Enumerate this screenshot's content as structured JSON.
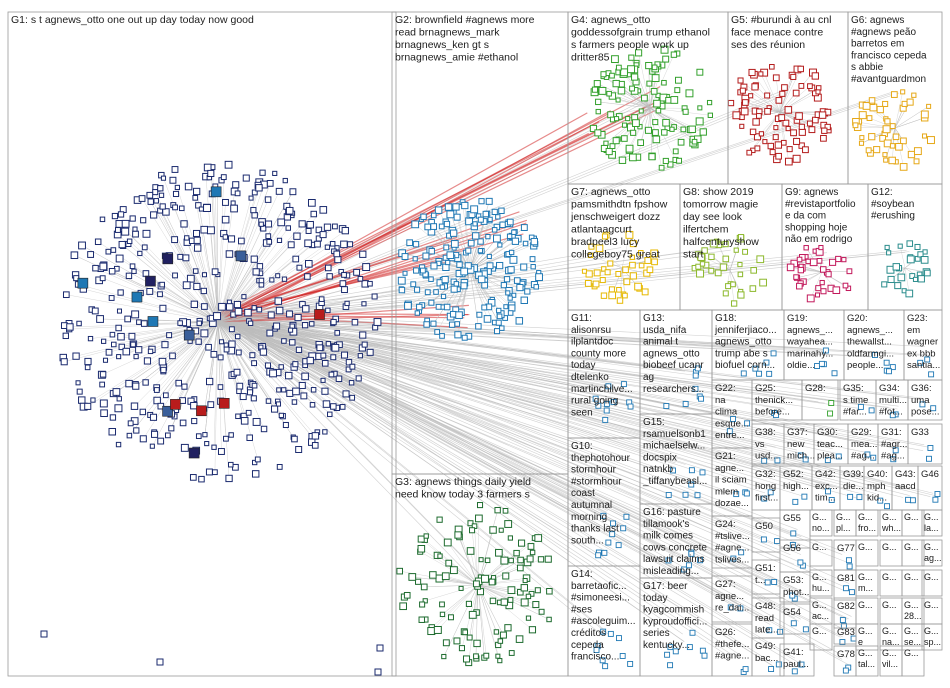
{
  "groups": [
    {
      "id": "G1",
      "lines": [
        "G1: s t agnews_otto one out up day today now good"
      ],
      "color": "#1a2a6e"
    },
    {
      "id": "G2",
      "lines": [
        "G2: brownfield #agnews more",
        "read brnagnews_mark",
        "brnagnews_ken gt s",
        "brnagnews_amie #ethanol"
      ],
      "color": "#1f78b4"
    },
    {
      "id": "G3",
      "lines": [
        "G3: agnews things daily yield",
        "need know today 3 farmers s"
      ],
      "color": "#1d6b2e"
    },
    {
      "id": "G4",
      "lines": [
        "G4: agnews_otto",
        "goddessofgrain trump ethanol",
        "s farmers people work up",
        "dritter85"
      ],
      "color": "#33a02c"
    },
    {
      "id": "G5",
      "lines": [
        "G5: #burundi à au cnl",
        "face menace contre",
        "ses des réunion"
      ],
      "color": "#b31b1b"
    },
    {
      "id": "G6",
      "lines": [
        "G6: agnews",
        "#agnews peão",
        "barretos em",
        "francisco cepeda",
        "s abbie",
        "#avantguardmon"
      ],
      "color": "#e6a817"
    },
    {
      "id": "G7",
      "lines": [
        "G7: agnews_otto",
        "pamsmithdtn fpshow",
        "jenschweigert dozz",
        "atlantaagcurt",
        "bradpeel3 lucy",
        "collegeboy75 great"
      ],
      "color": "#e6b800"
    },
    {
      "id": "G8",
      "lines": [
        "G8: show 2019",
        "tomorrow magie",
        "day see look",
        "ilfertchem",
        "halfcenturyshow",
        "start"
      ],
      "color": "#8cb82b"
    },
    {
      "id": "G9",
      "lines": [
        "G9: agnews",
        "#revistaportfolio",
        "e da com",
        "shopping hoje",
        "não em rodrigo"
      ],
      "color": "#c2185b"
    },
    {
      "id": "G10",
      "lines": [
        "G10:",
        "thephotohour",
        "stormhour",
        "#stormhour",
        "coast",
        "autumnal",
        "morning",
        "thanks last",
        "south..."
      ],
      "color": "#1f78b4"
    },
    {
      "id": "G11",
      "lines": [
        "G11:",
        "alisonrsu",
        "ilplantdoc",
        "county more",
        "today",
        "dtelenko",
        "martinchilve...",
        "rural going",
        "seen"
      ],
      "color": "#1f78b4"
    },
    {
      "id": "G12",
      "lines": [
        "G12:",
        "#soybean",
        "#erushing"
      ],
      "color": "#2a8c8c"
    },
    {
      "id": "G13",
      "lines": [
        "G13:",
        "usda_nifa",
        "animal t",
        "agnews_otto",
        "biobeef ucanr",
        "ag",
        "researchers..."
      ],
      "color": "#1f78b4"
    },
    {
      "id": "G14",
      "lines": [
        "G14:",
        "barretaofic...",
        "#simoneesi...",
        "#ses",
        "#ascoleguim...",
        "créditos",
        "cepeda",
        "francisco..."
      ],
      "color": "#1f78b4"
    },
    {
      "id": "G15",
      "lines": [
        "G15:",
        "rsamuelsonb1",
        "michaelselw...",
        "docspix",
        "natnkb",
        "_tiffanybeasl..."
      ],
      "color": "#1f78b4"
    },
    {
      "id": "G16",
      "lines": [
        "G16: pasture",
        "tillamook's",
        "milk comes",
        "cows concrete",
        "lawsuit claims",
        "misleading..."
      ],
      "color": "#1f78b4"
    },
    {
      "id": "G17",
      "lines": [
        "G17: beer",
        "today",
        "kyagcommish",
        "kyproudoffici...",
        "series",
        "kentucky..."
      ],
      "color": "#1f78b4"
    },
    {
      "id": "G18",
      "lines": [
        "G18:",
        "jenniferjiaco...",
        "agnews_otto",
        "trump abe s",
        "biofuel corn..."
      ],
      "color": "#1f78b4"
    },
    {
      "id": "G19",
      "lines": [
        "G19:",
        "agnews_...",
        "wayahea...",
        "marinahy...",
        "oldie..."
      ],
      "color": "#1f78b4"
    },
    {
      "id": "G20",
      "lines": [
        "G20:",
        "agnews_...",
        "thewallst...",
        "oldfarmgi...",
        "people..."
      ],
      "color": "#1f78b4"
    },
    {
      "id": "G21",
      "lines": [
        "G21:",
        "agne...",
        "il sciam",
        "mlem",
        "dozae..."
      ],
      "color": "#1f78b4"
    },
    {
      "id": "G22",
      "lines": [
        "G22:",
        "na",
        "clima",
        "esque...",
        "entre..."
      ],
      "color": "#1f78b4"
    },
    {
      "id": "G23",
      "lines": [
        "G23:",
        "em",
        "wagner",
        "ex bbb",
        "santia..."
      ],
      "color": "#1f78b4"
    },
    {
      "id": "G24",
      "lines": [
        "G24:",
        "#tslive...",
        "#agne...",
        "tslives..."
      ],
      "color": "#1f78b4"
    },
    {
      "id": "G25",
      "lines": [
        "G25:",
        "thenick...",
        "before..."
      ],
      "color": "#1f78b4"
    },
    {
      "id": "G26",
      "lines": [
        "G26:",
        "#thefe...",
        "#agne..."
      ],
      "color": "#1f78b4"
    },
    {
      "id": "G27",
      "lines": [
        "G27:",
        "agne...",
        "re_dai..."
      ],
      "color": "#1f78b4"
    },
    {
      "id": "G28",
      "lines": [
        "G28:"
      ],
      "color": "#33a02c"
    },
    {
      "id": "G29",
      "lines": [
        "G29:",
        "mea...",
        "#ag..."
      ],
      "color": "#1f78b4"
    },
    {
      "id": "G30",
      "lines": [
        "G30:",
        "teac...",
        "plea..."
      ],
      "color": "#1f78b4"
    },
    {
      "id": "G31",
      "lines": [
        "G31:",
        "#agr...",
        "#ag..."
      ],
      "color": "#1f78b4"
    },
    {
      "id": "G32",
      "lines": [
        "G32:",
        "hong",
        "first..."
      ],
      "color": "#1f78b4"
    },
    {
      "id": "G33",
      "lines": [
        "G33"
      ],
      "color": "#1f78b4"
    },
    {
      "id": "G34",
      "lines": [
        "G34:",
        "multi...",
        "#fot..."
      ],
      "color": "#1f78b4"
    },
    {
      "id": "G35",
      "lines": [
        "G35:",
        "s time",
        "#far..."
      ],
      "color": "#1f78b4"
    },
    {
      "id": "G36",
      "lines": [
        "G36:",
        "uma",
        "pose..."
      ],
      "color": "#1f78b4"
    },
    {
      "id": "G37",
      "lines": [
        "G37:",
        "new",
        "mich..."
      ],
      "color": "#1f78b4"
    },
    {
      "id": "G38",
      "lines": [
        "G38:",
        "vs",
        "usd..."
      ],
      "color": "#1f78b4"
    },
    {
      "id": "G39",
      "lines": [
        "G39:",
        "die..."
      ],
      "color": "#1f78b4"
    },
    {
      "id": "G40",
      "lines": [
        "G40:",
        "mph",
        "kid..."
      ],
      "color": "#1f78b4"
    },
    {
      "id": "G41",
      "lines": [
        "G41:",
        "paul..."
      ],
      "color": "#1f78b4"
    },
    {
      "id": "G42",
      "lines": [
        "G42:",
        "exc...",
        "tim..."
      ],
      "color": "#1f78b4"
    },
    {
      "id": "G43",
      "lines": [
        "G43:",
        "aacd"
      ],
      "color": "#1f78b4"
    },
    {
      "id": "G46",
      "lines": [
        "G46"
      ],
      "color": "#1f78b4"
    },
    {
      "id": "G48",
      "lines": [
        "G48:",
        "read",
        "late..."
      ],
      "color": "#1f78b4"
    },
    {
      "id": "G49",
      "lines": [
        "G49:",
        "bac..."
      ],
      "color": "#1f78b4"
    },
    {
      "id": "G50",
      "lines": [
        "G50"
      ],
      "color": "#1f78b4"
    },
    {
      "id": "G51",
      "lines": [
        "G51:",
        "t..."
      ],
      "color": "#1f78b4"
    },
    {
      "id": "G52",
      "lines": [
        "G52:",
        "high...",
        ""
      ],
      "color": "#1f78b4"
    },
    {
      "id": "G53",
      "lines": [
        "G53:",
        "phot..."
      ],
      "color": "#1f78b4"
    },
    {
      "id": "G54",
      "lines": [
        "G54"
      ],
      "color": "#1f78b4"
    },
    {
      "id": "G55",
      "lines": [
        "G55"
      ],
      "color": "#1f78b4"
    },
    {
      "id": "G56",
      "lines": [
        "G56"
      ],
      "color": "#1f78b4"
    },
    {
      "id": "G77",
      "lines": [
        "G77"
      ],
      "color": "#1f78b4"
    },
    {
      "id": "G78",
      "lines": [
        "G78"
      ],
      "color": "#1f78b4"
    },
    {
      "id": "G81",
      "lines": [
        "G81"
      ],
      "color": "#1f78b4"
    },
    {
      "id": "G82",
      "lines": [
        "G82"
      ],
      "color": "#1f78b4"
    },
    {
      "id": "G83",
      "lines": [
        "G83"
      ],
      "color": "#1f78b4"
    }
  ],
  "small_cells": [
    {
      "lines": [
        "G...",
        "no...",
        ""
      ]
    },
    {
      "lines": [
        "G...",
        "pl...",
        ""
      ]
    },
    {
      "lines": [
        "G...",
        "fro...",
        ""
      ]
    },
    {
      "lines": [
        "G...",
        "wh...",
        ""
      ]
    },
    {
      "lines": [
        "G...",
        "",
        ""
      ]
    },
    {
      "lines": [
        "G...",
        "la...",
        ""
      ]
    },
    {
      "lines": [
        "G...",
        "",
        ""
      ]
    },
    {
      "lines": [
        "G...",
        "",
        ""
      ]
    },
    {
      "lines": [
        "G...",
        "",
        ""
      ]
    },
    {
      "lines": [
        "G...",
        "",
        ""
      ]
    },
    {
      "lines": [
        "G...",
        "ag...",
        ""
      ]
    },
    {
      "lines": [
        "G...",
        "hu...",
        ""
      ]
    },
    {
      "lines": [
        "G...",
        "m...",
        ""
      ]
    },
    {
      "lines": [
        "G...",
        "",
        ""
      ]
    },
    {
      "lines": [
        "G...",
        "",
        ""
      ]
    },
    {
      "lines": [
        "G...",
        "",
        ""
      ]
    },
    {
      "lines": [
        "G...",
        "ac...",
        ""
      ]
    },
    {
      "lines": [
        "G...",
        "",
        ""
      ]
    },
    {
      "lines": [
        "G...",
        "",
        ""
      ]
    },
    {
      "lines": [
        "G...",
        "28...",
        ""
      ]
    },
    {
      "lines": [
        "G...",
        "",
        ""
      ]
    },
    {
      "lines": [
        "G...",
        "",
        ""
      ]
    },
    {
      "lines": [
        "G...",
        "e",
        ""
      ]
    },
    {
      "lines": [
        "G...",
        "na...",
        ""
      ]
    },
    {
      "lines": [
        "G...",
        "se...",
        ""
      ]
    },
    {
      "lines": [
        "G...",
        "sp...",
        ""
      ]
    },
    {
      "lines": [
        "G...",
        "tal...",
        ""
      ]
    },
    {
      "lines": [
        "G...",
        "vil...",
        ""
      ]
    },
    {
      "lines": [
        "G...",
        "",
        ""
      ]
    }
  ],
  "colors": {
    "frame": "#999999",
    "edge": "#bdbdbd",
    "hub_edge": "#d12b2b"
  }
}
